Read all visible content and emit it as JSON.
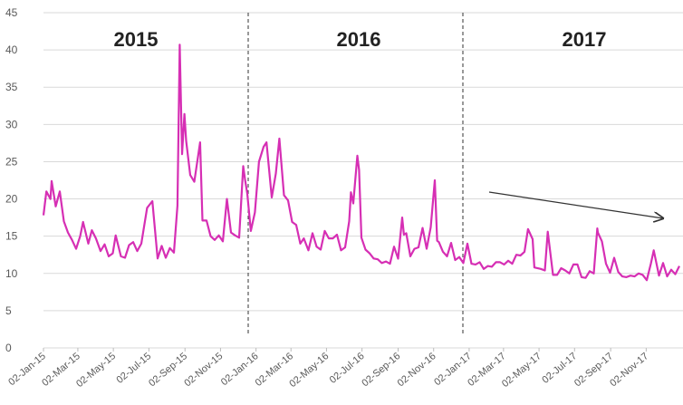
{
  "chart_data": {
    "type": "line",
    "annotations": [
      "2015",
      "2016",
      "2017"
    ],
    "grid": true,
    "ylim": [
      0,
      45
    ],
    "yticks": [
      0,
      5,
      10,
      15,
      20,
      25,
      30,
      35,
      40,
      45
    ],
    "xlim": [
      "2015-01-02",
      "2017-12-29"
    ],
    "xticks": [
      {
        "value": "2015-01-02",
        "label": "02-Jan-15"
      },
      {
        "value": "2015-03-02",
        "label": "02-Mar-15"
      },
      {
        "value": "2015-05-02",
        "label": "02-May-15"
      },
      {
        "value": "2015-07-02",
        "label": "02-Jul-15"
      },
      {
        "value": "2015-09-02",
        "label": "02-Sep-15"
      },
      {
        "value": "2015-11-02",
        "label": "02-Nov-15"
      },
      {
        "value": "2016-01-02",
        "label": "02-Jan-16"
      },
      {
        "value": "2016-03-02",
        "label": "02-Mar-16"
      },
      {
        "value": "2016-05-02",
        "label": "02-May-16"
      },
      {
        "value": "2016-07-02",
        "label": "02-Jul-16"
      },
      {
        "value": "2016-09-02",
        "label": "02-Sep-16"
      },
      {
        "value": "2016-11-02",
        "label": "02-Nov-16"
      },
      {
        "value": "2017-01-02",
        "label": "02-Jan-17"
      },
      {
        "value": "2017-03-02",
        "label": "02-Mar-17"
      },
      {
        "value": "2017-05-02",
        "label": "02-May-17"
      },
      {
        "value": "2017-07-02",
        "label": "02-Jul-17"
      },
      {
        "value": "2017-09-02",
        "label": "02-Sep-17"
      },
      {
        "value": "2017-11-02",
        "label": "02-Nov-17"
      }
    ],
    "x": [
      "2015-01-02",
      "2015-01-07",
      "2015-01-14",
      "2015-01-16",
      "2015-01-23",
      "2015-01-30",
      "2015-02-06",
      "2015-02-13",
      "2015-02-20",
      "2015-02-27",
      "2015-03-06",
      "2015-03-11",
      "2015-03-20",
      "2015-03-26",
      "2015-04-02",
      "2015-04-10",
      "2015-04-17",
      "2015-04-24",
      "2015-05-01",
      "2015-05-06",
      "2015-05-15",
      "2015-05-22",
      "2015-05-29",
      "2015-06-05",
      "2015-06-12",
      "2015-06-19",
      "2015-06-29",
      "2015-07-08",
      "2015-07-17",
      "2015-07-24",
      "2015-07-31",
      "2015-08-07",
      "2015-08-14",
      "2015-08-20",
      "2015-08-24",
      "2015-08-28",
      "2015-09-01",
      "2015-09-04",
      "2015-09-11",
      "2015-09-18",
      "2015-09-28",
      "2015-10-02",
      "2015-10-09",
      "2015-10-16",
      "2015-10-23",
      "2015-10-30",
      "2015-11-06",
      "2015-11-13",
      "2015-11-20",
      "2015-11-27",
      "2015-12-04",
      "2015-12-11",
      "2015-12-14",
      "2015-12-18",
      "2015-12-24",
      "2015-12-31",
      "2016-01-07",
      "2016-01-15",
      "2016-01-20",
      "2016-01-29",
      "2016-02-05",
      "2016-02-11",
      "2016-02-19",
      "2016-02-26",
      "2016-03-04",
      "2016-03-11",
      "2016-03-18",
      "2016-03-24",
      "2016-04-01",
      "2016-04-08",
      "2016-04-15",
      "2016-04-22",
      "2016-04-29",
      "2016-05-06",
      "2016-05-13",
      "2016-05-20",
      "2016-05-27",
      "2016-06-03",
      "2016-06-10",
      "2016-06-13",
      "2016-06-17",
      "2016-06-24",
      "2016-06-27",
      "2016-07-01",
      "2016-07-08",
      "2016-07-15",
      "2016-07-22",
      "2016-07-29",
      "2016-08-05",
      "2016-08-12",
      "2016-08-19",
      "2016-08-26",
      "2016-09-02",
      "2016-09-09",
      "2016-09-12",
      "2016-09-16",
      "2016-09-23",
      "2016-09-30",
      "2016-10-07",
      "2016-10-14",
      "2016-10-21",
      "2016-10-28",
      "2016-11-04",
      "2016-11-08",
      "2016-11-11",
      "2016-11-18",
      "2016-11-25",
      "2016-12-02",
      "2016-12-09",
      "2016-12-16",
      "2016-12-23",
      "2016-12-30",
      "2017-01-06",
      "2017-01-13",
      "2017-01-20",
      "2017-01-27",
      "2017-02-03",
      "2017-02-10",
      "2017-02-17",
      "2017-02-24",
      "2017-03-03",
      "2017-03-10",
      "2017-03-17",
      "2017-03-24",
      "2017-03-31",
      "2017-04-07",
      "2017-04-13",
      "2017-04-21",
      "2017-04-24",
      "2017-05-05",
      "2017-05-12",
      "2017-05-17",
      "2017-05-26",
      "2017-06-02",
      "2017-06-09",
      "2017-06-16",
      "2017-06-23",
      "2017-06-30",
      "2017-07-07",
      "2017-07-14",
      "2017-07-21",
      "2017-07-28",
      "2017-08-04",
      "2017-08-10",
      "2017-08-11",
      "2017-08-18",
      "2017-08-25",
      "2017-09-01",
      "2017-09-08",
      "2017-09-15",
      "2017-09-22",
      "2017-09-29",
      "2017-10-06",
      "2017-10-13",
      "2017-10-20",
      "2017-10-27",
      "2017-11-03",
      "2017-11-10",
      "2017-11-15",
      "2017-11-24",
      "2017-12-01",
      "2017-12-08",
      "2017-12-15",
      "2017-12-22",
      "2017-12-29"
    ],
    "series": [
      {
        "color": "#d62fb4",
        "values": [
          17.8,
          21,
          20,
          22.4,
          19,
          21,
          17,
          15.5,
          14.5,
          13.3,
          15,
          16.9,
          14,
          15.8,
          14.7,
          13,
          13.9,
          12.3,
          12.7,
          15.1,
          12.3,
          12.1,
          13.8,
          14.2,
          13,
          14,
          18.8,
          19.7,
          12,
          13.7,
          12.1,
          13.4,
          12.8,
          19.1,
          40.7,
          26,
          31.4,
          27.8,
          23.2,
          22.3,
          27.6,
          17.1,
          17.1,
          15,
          14.5,
          15.1,
          14.3,
          20,
          15.5,
          15.1,
          14.8,
          24.4,
          22.7,
          20.7,
          15.7,
          18.2,
          24.99,
          27,
          27.6,
          20.2,
          23.4,
          28.1,
          20.5,
          19.8,
          16.9,
          16.5,
          14,
          14.7,
          13.1,
          15.4,
          13.6,
          13.2,
          15.7,
          14.7,
          14.7,
          15.2,
          13.1,
          13.5,
          17,
          20.9,
          19.4,
          25.8,
          23.9,
          14.8,
          13.2,
          12.7,
          12,
          11.9,
          11.4,
          11.6,
          11.3,
          13.6,
          11.98,
          17.5,
          15.2,
          15.4,
          12.3,
          13.3,
          13.5,
          16.1,
          13.3,
          16.2,
          22.5,
          14.4,
          14.2,
          12.9,
          12.3,
          14.1,
          11.8,
          12.2,
          11.4,
          14,
          11.3,
          11.2,
          11.5,
          10.6,
          11,
          10.9,
          11.5,
          11.5,
          11.2,
          11.7,
          11.3,
          12.5,
          12.4,
          12.9,
          15.96,
          14.6,
          10.8,
          10.6,
          10.4,
          15.6,
          9.8,
          9.8,
          10.7,
          10.4,
          10,
          11.2,
          11.2,
          9.5,
          9.4,
          10.3,
          10,
          16.04,
          15.5,
          14.3,
          11.3,
          10.1,
          12.1,
          10.2,
          9.6,
          9.5,
          9.7,
          9.6,
          10,
          9.8,
          9.1,
          11.3,
          13.1,
          9.7,
          11.4,
          9.6,
          10.5,
          9.9,
          11
        ]
      }
    ]
  }
}
